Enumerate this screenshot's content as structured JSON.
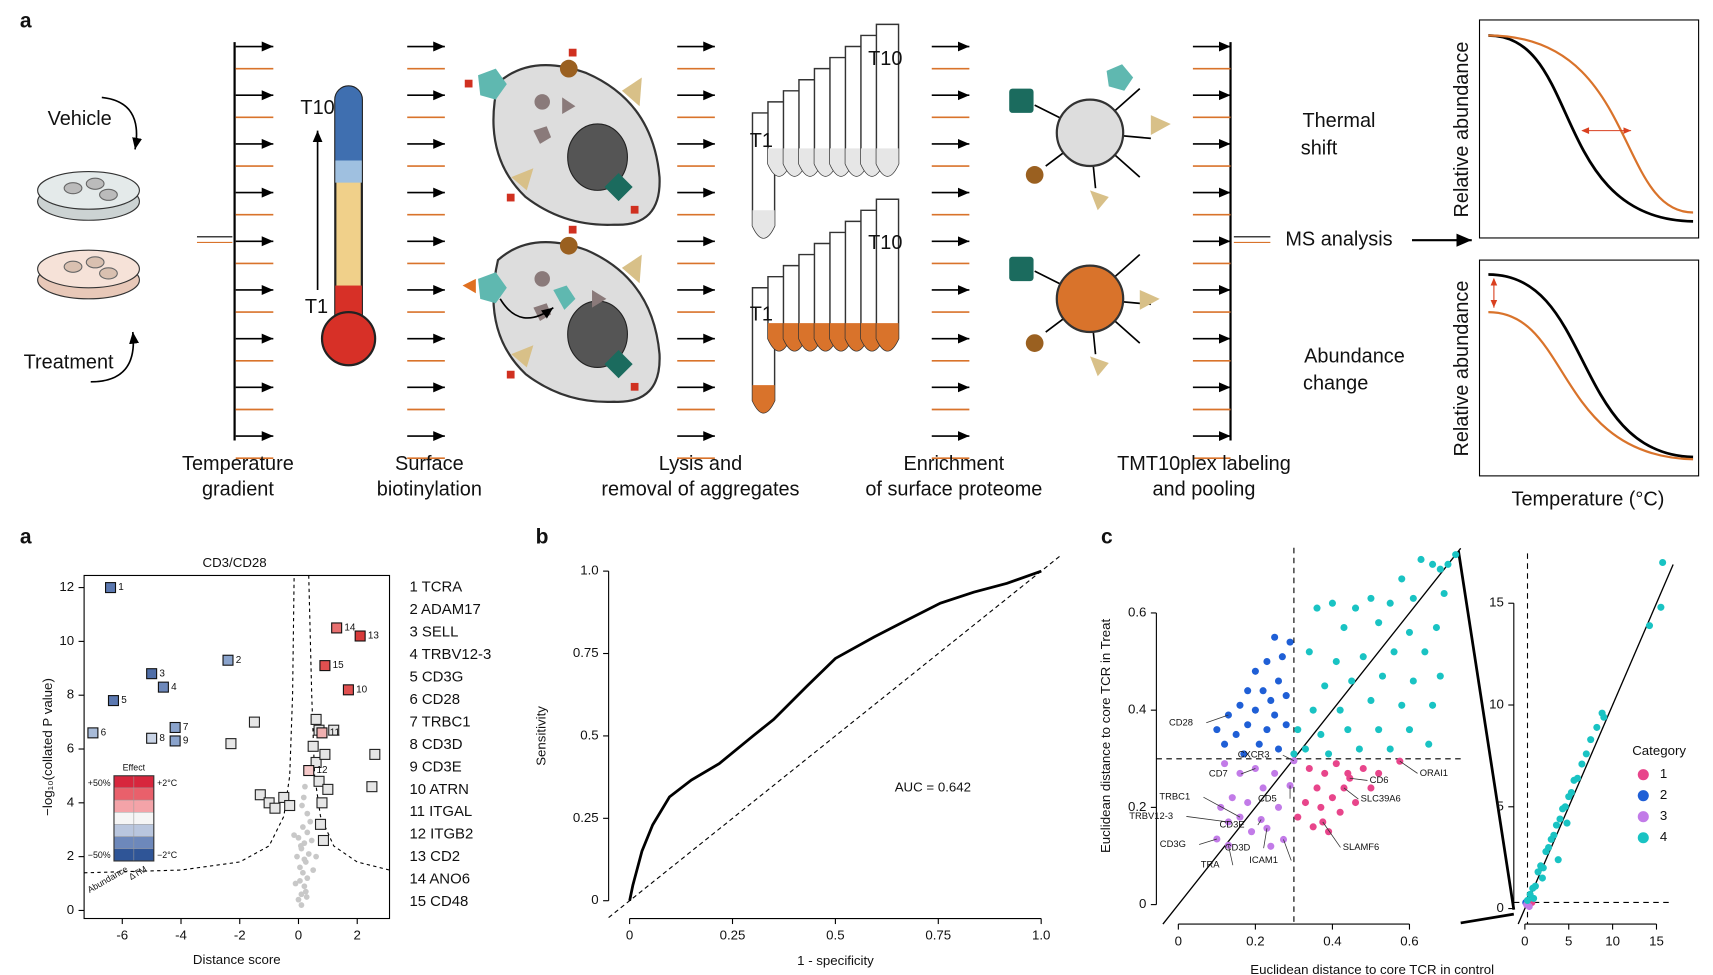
{
  "workflow": {
    "panel_label": "a",
    "vehicle": "Vehicle",
    "treatment": "Treatment",
    "t10": "T10",
    "t1": "T1",
    "steps": [
      [
        "Temperature",
        "gradient"
      ],
      [
        "Surface",
        "biotinylation"
      ],
      [
        "Lysis and",
        "removal of aggregates"
      ],
      [
        "Enrichment",
        "of surface proteome"
      ],
      [
        "TMT10plex labeling",
        "and pooling"
      ]
    ],
    "thermal_shift": [
      "Thermal",
      "shift"
    ],
    "ms_analysis": "MS analysis",
    "abundance_change": [
      "Abundance",
      "change"
    ],
    "y_label": "Relative abundance",
    "x_label": "Temperature (°C)"
  },
  "chart_data": [
    {
      "type": "volcano",
      "panel_label": "a",
      "title": "CD3/CD28",
      "x_label": "Distance score",
      "y_label": "−log₁₀(collated P value)",
      "xlim": [
        -7.3,
        3.1
      ],
      "ylim": [
        -0.3,
        12.45
      ],
      "xticks": [
        -6,
        -4,
        -2,
        0,
        2
      ],
      "yticks": [
        0,
        2,
        4,
        6,
        8,
        10,
        12
      ],
      "labeled": {
        "x": [
          -6.4,
          -2.4,
          -5.0,
          -4.6,
          -6.3,
          -7.0,
          -4.2,
          -5.0,
          -4.2,
          1.7,
          0.8,
          0.35,
          2.1,
          1.3,
          0.9
        ],
        "y": [
          12.0,
          9.3,
          8.8,
          8.3,
          7.8,
          6.6,
          6.8,
          6.4,
          6.3,
          8.2,
          6.6,
          5.2,
          10.2,
          10.5,
          9.1
        ],
        "labels": [
          "1",
          "2",
          "3",
          "4",
          "5",
          "6",
          "7",
          "8",
          "9",
          "10",
          "11",
          "12",
          "13",
          "14",
          "15"
        ],
        "colors": [
          "#5b78b0",
          "#8aa3cc",
          "#4f6ea8",
          "#6d88bb",
          "#5b78b0",
          "#a8bbd8",
          "#8aa3cc",
          "#c9d4e6",
          "#8aa3cc",
          "#e05050",
          "#f0b0b0",
          "#f5c8c8",
          "#d83a3a",
          "#e87070",
          "#e05050"
        ]
      },
      "unlabeled": {
        "color": "#e6e6e6",
        "x": [
          -1.3,
          -1.0,
          -0.8,
          -0.5,
          -0.3,
          0.6,
          0.7,
          0.8,
          1.0,
          0.75,
          0.85,
          0.9,
          -1.5,
          -2.3,
          0.6,
          0.5,
          2.6,
          2.5,
          1.2,
          0.7
        ],
        "y": [
          4.3,
          4.0,
          3.8,
          4.2,
          3.9,
          5.5,
          4.8,
          4.0,
          4.5,
          3.2,
          2.6,
          5.8,
          7.0,
          6.2,
          7.1,
          6.1,
          5.8,
          4.6,
          6.7,
          6.7
        ]
      },
      "background": {
        "color": "#c8c8c8",
        "x": [
          0.0,
          0.1,
          0.2,
          -0.1,
          0.3,
          0.15,
          0.05,
          0.25,
          -0.05,
          0.35,
          0.1,
          0.2,
          0.0,
          0.3,
          0.15,
          0.4,
          0.05,
          0.25,
          0.1,
          0.2,
          0.45,
          -0.15,
          0.3,
          0.12,
          0.18,
          0.5,
          0.22,
          0.08,
          0.28,
          0.6
        ],
        "y": [
          0.4,
          0.6,
          0.9,
          1.0,
          1.2,
          1.4,
          1.6,
          1.8,
          2.0,
          2.1,
          2.3,
          2.5,
          2.7,
          2.9,
          3.1,
          3.3,
          1.1,
          0.7,
          0.2,
          1.9,
          2.6,
          2.8,
          3.6,
          3.9,
          4.2,
          1.5,
          4.6,
          2.4,
          0.5,
          2.0
        ]
      },
      "threshold": {
        "x": [
          -7.3,
          -4,
          -2,
          -1,
          -0.5,
          -0.3,
          -0.2,
          -0.15,
          null,
          0.35,
          0.45,
          0.55,
          0.75,
          1.2,
          2,
          3.1
        ],
        "y": [
          1.4,
          1.5,
          1.8,
          2.4,
          3.5,
          5,
          8,
          12.45,
          null,
          12.45,
          8,
          5,
          3.5,
          2.4,
          1.8,
          1.5
        ]
      },
      "gene_list": [
        "1 TCRA",
        "2 ADAM17",
        "3 SELL",
        "4 TRBV12-3",
        "5 CD3G",
        "6 CD28",
        "7 TRBC1",
        "8 CD3D",
        "9 CD3E",
        "10 ATRN",
        "11 ITGAL",
        "12 ITGB2",
        "13 CD2",
        "14 ANO6",
        "15 CD48"
      ],
      "legend": {
        "title": "Effect",
        "labels": [
          "+50%",
          "−50%",
          "+2°C",
          "−2°C"
        ],
        "axes": [
          "Abundance",
          "ΔTM"
        ],
        "colors": [
          "#d7263d",
          "#e9606b",
          "#f4a3a8",
          "#f5f5f5",
          "#b9c6de",
          "#6d88bb",
          "#2f5597"
        ]
      }
    },
    {
      "type": "line",
      "panel_label": "b",
      "x_label": "1 - specificity",
      "y_label": "Sensitivity",
      "annotation": "AUC = 0.642",
      "xlim": [
        -0.051,
        1.046
      ],
      "ylim": [
        -0.054,
        1.064
      ],
      "xticks": [
        0,
        0.25,
        0.5,
        0.75,
        {
          "value": 1,
          "label": "1.0"
        }
      ],
      "yticks": [
        0,
        0.25,
        0.5,
        0.75,
        {
          "value": 1,
          "label": "1.0"
        }
      ],
      "color": "#000000",
      "x": [
        0,
        0.008,
        0.03,
        0.056,
        0.097,
        0.15,
        0.218,
        0.3,
        0.35,
        0.43,
        0.5,
        0.594,
        0.675,
        0.755,
        0.836,
        0.917,
        1
      ],
      "values": [
        0,
        0.047,
        0.15,
        0.23,
        0.315,
        0.366,
        0.416,
        0.5,
        0.55,
        0.65,
        0.735,
        0.8,
        0.852,
        0.903,
        0.936,
        0.963,
        1
      ]
    },
    {
      "type": "scatter",
      "panel_label": "c",
      "x_label": "Euclidean distance to core TCR in control",
      "y_label": "Euclidean distance to core TCR in Treat",
      "xlim": [
        -0.057,
        0.733
      ],
      "ylim": [
        -0.04,
        0.734
      ],
      "xticks": [
        0,
        0.2,
        0.4,
        0.6
      ],
      "yticks": [
        0,
        0.2,
        0.4,
        0.6
      ],
      "ref_lines": {
        "x": 0.3,
        "y": 0.3
      },
      "series": [
        {
          "color": "#e8458b",
          "x": [
            0.575,
            0.445,
            0.43,
            0.375,
            0.34,
            0.38,
            0.41,
            0.48,
            0.52,
            0.36,
            0.4,
            0.46,
            0.33,
            0.37,
            0.42,
            0.35,
            0.39,
            0.31,
            0.44,
            0.5
          ],
          "y": [
            0.295,
            0.26,
            0.24,
            0.17,
            0.28,
            0.27,
            0.29,
            0.28,
            0.27,
            0.24,
            0.22,
            0.21,
            0.21,
            0.2,
            0.19,
            0.16,
            0.15,
            0.18,
            0.27,
            0.24
          ]
        },
        {
          "color": "#1f5fd6",
          "x": [
            0.29,
            0.27,
            0.25,
            0.23,
            0.2,
            0.26,
            0.22,
            0.18,
            0.24,
            0.28,
            0.16,
            0.2,
            0.25,
            0.13,
            0.18,
            0.23,
            0.28,
            0.1,
            0.15,
            0.21,
            0.26,
            0.12,
            0.17
          ],
          "y": [
            0.54,
            0.51,
            0.55,
            0.5,
            0.48,
            0.46,
            0.44,
            0.44,
            0.42,
            0.43,
            0.41,
            0.4,
            0.39,
            0.39,
            0.37,
            0.36,
            0.37,
            0.36,
            0.35,
            0.33,
            0.32,
            0.33,
            0.31
          ]
        },
        {
          "color": "#c27be8",
          "x": [
            0.3,
            0.2,
            0.12,
            0.16,
            0.25,
            0.29,
            0.22,
            0.14,
            0.18,
            0.16,
            0.13,
            0.215,
            0.23,
            0.1,
            0.273,
            0.13,
            0.19,
            0.26,
            0.11,
            0.24
          ],
          "y": [
            0.296,
            0.28,
            0.29,
            0.27,
            0.27,
            0.245,
            0.24,
            0.22,
            0.21,
            0.18,
            0.17,
            0.175,
            0.157,
            0.135,
            0.134,
            0.122,
            0.15,
            0.2,
            0.2,
            0.12
          ]
        },
        {
          "color": "#19c3c3",
          "x": [
            0.72,
            0.7,
            0.68,
            0.66,
            0.63,
            0.58,
            0.69,
            0.61,
            0.55,
            0.5,
            0.46,
            0.4,
            0.36,
            0.43,
            0.52,
            0.6,
            0.67,
            0.64,
            0.56,
            0.48,
            0.41,
            0.34,
            0.38,
            0.45,
            0.53,
            0.61,
            0.68,
            0.66,
            0.58,
            0.5,
            0.42,
            0.35,
            0.31,
            0.37,
            0.44,
            0.52,
            0.6,
            0.65,
            0.55,
            0.47,
            0.39,
            0.33,
            0.3
          ],
          "y": [
            0.72,
            0.7,
            0.69,
            0.7,
            0.71,
            0.67,
            0.64,
            0.63,
            0.62,
            0.63,
            0.61,
            0.62,
            0.61,
            0.57,
            0.58,
            0.56,
            0.57,
            0.52,
            0.52,
            0.51,
            0.5,
            0.52,
            0.45,
            0.46,
            0.47,
            0.46,
            0.47,
            0.41,
            0.41,
            0.42,
            0.4,
            0.4,
            0.36,
            0.35,
            0.36,
            0.36,
            0.36,
            0.33,
            0.32,
            0.32,
            0.31,
            0.32,
            0.31
          ]
        }
      ],
      "annotations": [
        {
          "text": "CD28",
          "x": 0.13,
          "y": 0.39
        },
        {
          "text": "CD7",
          "x": 0.2,
          "y": 0.28
        },
        {
          "text": "CXCR3",
          "x": 0.3,
          "y": 0.296
        },
        {
          "text": "TRBC1",
          "x": 0.16,
          "y": 0.18
        },
        {
          "text": "TRBV12-3",
          "x": 0.13,
          "y": 0.17
        },
        {
          "text": "CD3G",
          "x": 0.1,
          "y": 0.135
        },
        {
          "text": "CD3D",
          "x": 0.23,
          "y": 0.157
        },
        {
          "text": "CD3E",
          "x": 0.215,
          "y": 0.175
        },
        {
          "text": "CD5",
          "x": 0.29,
          "y": 0.245
        },
        {
          "text": "CD6",
          "x": 0.445,
          "y": 0.26
        },
        {
          "text": "ORAI1",
          "x": 0.575,
          "y": 0.295
        },
        {
          "text": "SLC39A6",
          "x": 0.43,
          "y": 0.24
        },
        {
          "text": "SLAMF6",
          "x": 0.375,
          "y": 0.17
        },
        {
          "text": "ICAM1",
          "x": 0.273,
          "y": 0.134
        },
        {
          "text": "TRA",
          "x": 0.13,
          "y": 0.122
        }
      ]
    },
    {
      "type": "scatter",
      "xlim": [
        -1.26,
        16.9
      ],
      "ylim": [
        -0.76,
        17.45
      ],
      "xticks": [
        0,
        5,
        10,
        15
      ],
      "yticks": [
        0,
        5,
        10,
        15
      ],
      "ref_lines": {
        "x": 0.3,
        "y": 0.3
      },
      "legend_title": "Category",
      "series": [
        {
          "name": "1",
          "color": "#e8458b",
          "x": [
            0.8
          ],
          "y": [
            0.3
          ]
        },
        {
          "name": "2",
          "color": "#1f5fd6",
          "x": [
            0.1
          ],
          "y": [
            0.3
          ]
        },
        {
          "name": "3",
          "color": "#c27be8",
          "x": [
            0.2,
            0.5
          ],
          "y": [
            0.2,
            0.1
          ]
        },
        {
          "name": "4",
          "color": "#19c3c3",
          "x": [
            0.3,
            0.6,
            0.9,
            1.2,
            1.5,
            1.8,
            2.1,
            2.4,
            2.7,
            3.0,
            3.3,
            3.6,
            4.0,
            4.3,
            4.6,
            5.0,
            5.3,
            5.6,
            6.0,
            6.5,
            7.0,
            7.5,
            8.2,
            8.8,
            9.0,
            2.0,
            3.8,
            1.0,
            14.2,
            15.5,
            15.7,
            4.8
          ],
          "y": [
            0.4,
            0.7,
            1.0,
            1.1,
            1.8,
            2.1,
            2.0,
            2.8,
            3.0,
            3.4,
            3.6,
            4.1,
            4.4,
            4.9,
            5.0,
            5.5,
            5.7,
            6.3,
            6.4,
            7.1,
            7.6,
            8.3,
            8.9,
            9.6,
            9.4,
            1.5,
            2.4,
            0.5,
            13.9,
            14.8,
            17.0,
            4.2
          ]
        }
      ]
    }
  ]
}
